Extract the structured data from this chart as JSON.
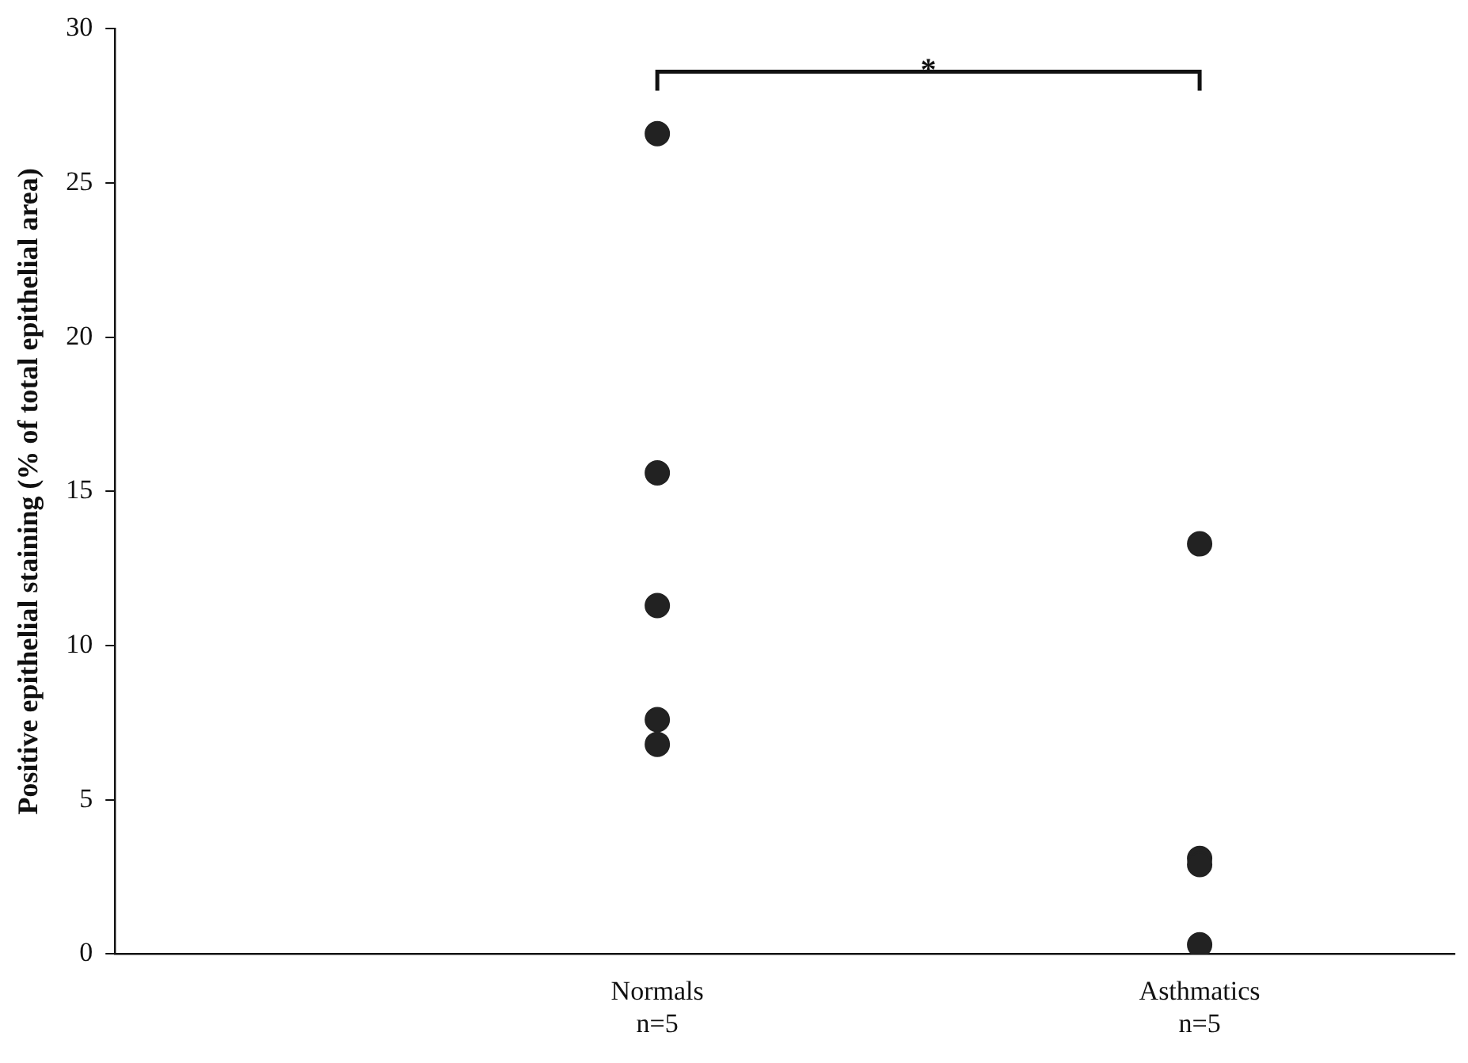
{
  "chart_data": {
    "type": "scatter",
    "ylabel": "Positive epithelial staining (% of total epithelial area)",
    "categories": [
      "Normals\nn=5",
      "Asthmatics\nn=5"
    ],
    "series": [
      {
        "color": "#222222",
        "x": [
          "Normals\nn=5",
          "Normals\nn=5",
          "Normals\nn=5",
          "Normals\nn=5",
          "Normals\nn=5"
        ],
        "values": [
          26.6,
          15.6,
          11.3,
          7.6,
          6.8
        ]
      },
      {
        "color": "#222222",
        "x": [
          "Asthmatics\nn=5",
          "Asthmatics\nn=5",
          "Asthmatics\nn=5",
          "Asthmatics\nn=5"
        ],
        "values": [
          13.3,
          3.1,
          2.9,
          0.3
        ]
      }
    ],
    "ylim": [
      0,
      30
    ],
    "yticks": [
      0,
      5,
      10,
      15,
      20,
      25,
      30
    ],
    "grid": false,
    "legend": false,
    "marker": "circle",
    "annotations": [
      "*"
    ]
  }
}
